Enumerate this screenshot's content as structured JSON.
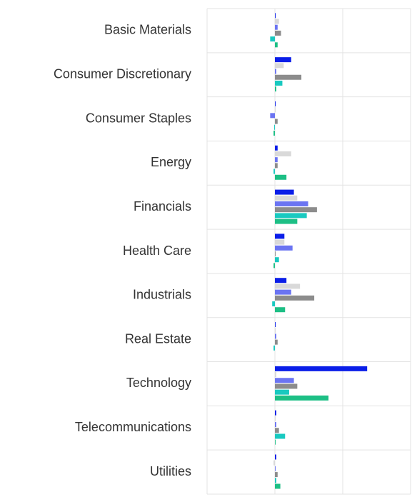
{
  "chart_data": {
    "type": "hbar",
    "categories": [
      "Basic Materials",
      "Consumer Discretionary",
      "Consumer Staples",
      "Energy",
      "Financials",
      "Health Care",
      "Industrials",
      "Real Estate",
      "Technology",
      "Telecommunications",
      "Utilities"
    ],
    "series": [
      {
        "color": "#0a1ee8",
        "values": [
          1,
          24,
          1,
          4,
          28,
          14,
          17,
          1,
          136,
          2,
          2
        ]
      },
      {
        "color": "#d9d9d9",
        "values": [
          6,
          13,
          1,
          24,
          33,
          14,
          37,
          1,
          2,
          1,
          -2
        ]
      },
      {
        "color": "#6b74f2",
        "values": [
          4,
          2,
          -7,
          4,
          49,
          26,
          24,
          2,
          28,
          2,
          1
        ]
      },
      {
        "color": "#8c8c8c",
        "values": [
          9,
          39,
          4,
          4,
          62,
          1,
          58,
          4,
          33,
          6,
          4
        ]
      },
      {
        "color": "#19c9c0",
        "values": [
          -7,
          11,
          -1,
          -2,
          47,
          6,
          -4,
          -2,
          21,
          15,
          2
        ]
      },
      {
        "color": "#1dbf85",
        "values": [
          4,
          2,
          -2,
          17,
          33,
          -2,
          15,
          0,
          79,
          1,
          8
        ]
      }
    ],
    "xlim": [
      -100,
      200
    ],
    "xticks": [
      -100,
      0,
      100,
      200
    ],
    "grid": true
  }
}
